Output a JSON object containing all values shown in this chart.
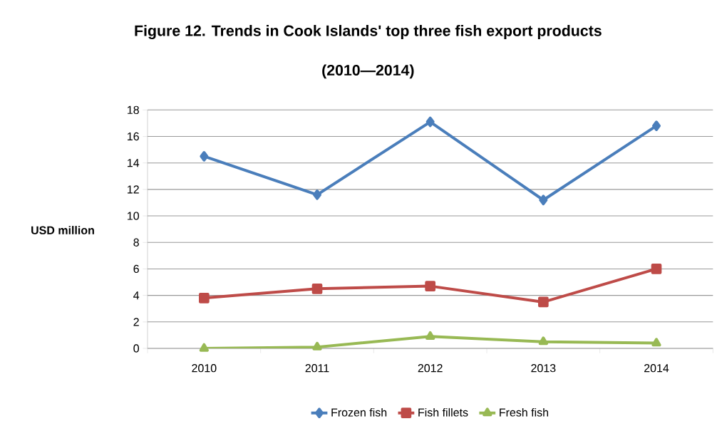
{
  "chart_data": {
    "type": "line",
    "title": "Figure 12. Trends in Cook Islands' top three fish export products",
    "subtitle": "(2010—2014)",
    "ylabel": "USD million",
    "categories": [
      "2010",
      "2011",
      "2012",
      "2013",
      "2014"
    ],
    "series": [
      {
        "name": "Frozen fish",
        "color": "#4a7ebb",
        "marker": "diamond",
        "values": [
          14.5,
          11.6,
          17.1,
          11.2,
          16.8
        ]
      },
      {
        "name": "Fish fillets",
        "color": "#be4b48",
        "marker": "square",
        "values": [
          3.8,
          4.5,
          4.7,
          3.5,
          6.0
        ]
      },
      {
        "name": "Fresh fish",
        "color": "#98b954",
        "marker": "triangle",
        "values": [
          0.0,
          0.1,
          0.9,
          0.5,
          0.4
        ]
      }
    ],
    "ylim": [
      0,
      18
    ],
    "yticks": [
      0,
      2,
      4,
      6,
      8,
      10,
      12,
      14,
      16,
      18
    ],
    "grid": "y",
    "legend": "bottom",
    "line_style": "solid"
  }
}
